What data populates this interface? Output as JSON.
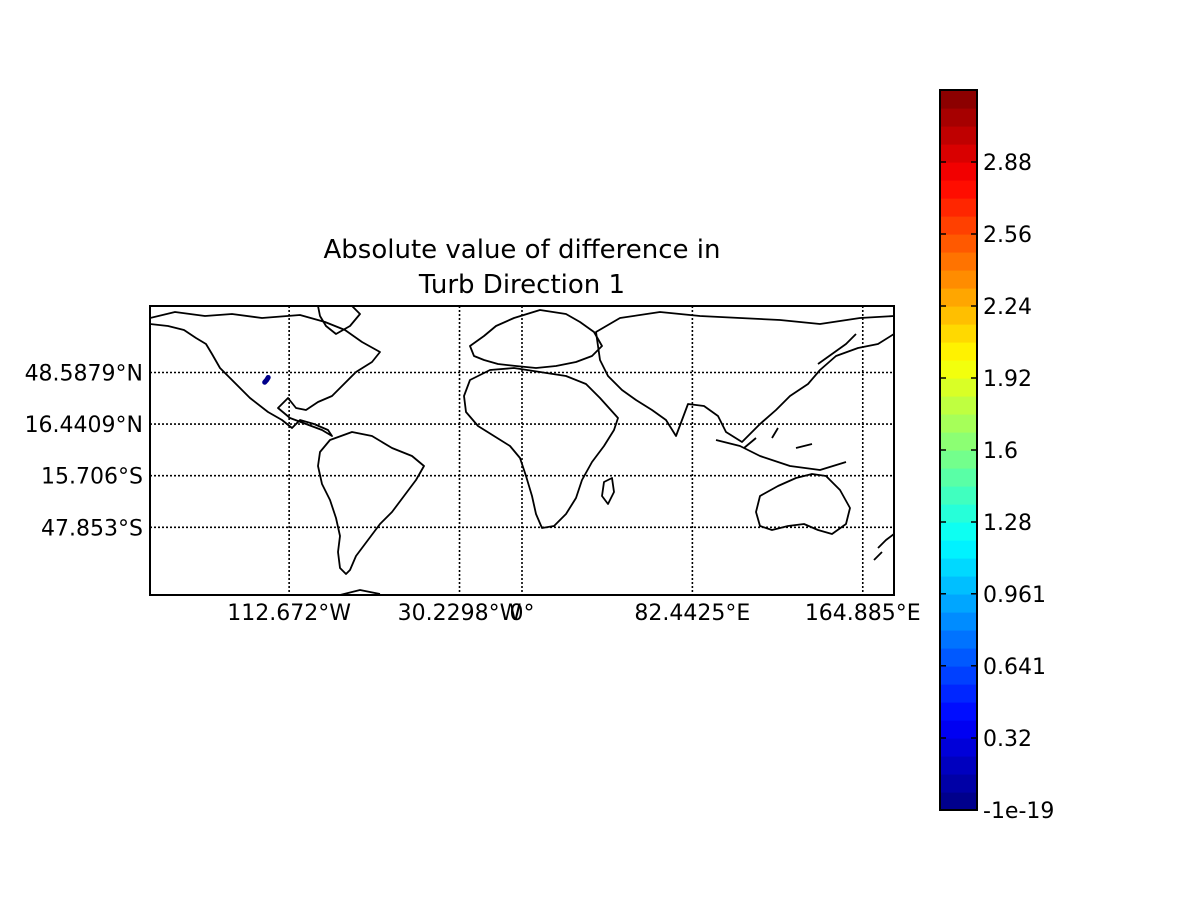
{
  "title": {
    "line1": "Absolute value of difference in",
    "line2": "Turb Direction 1"
  },
  "map": {
    "projection": "cylindrical",
    "lon_range": [
      -180,
      180
    ],
    "lat_range": [
      -90,
      90
    ],
    "grid": "dotted",
    "meridians": [
      {
        "lon": -112.672,
        "label": "112.672°W"
      },
      {
        "lon": -30.2298,
        "label": "30.2298°W"
      },
      {
        "lon": 0,
        "label": "0°"
      },
      {
        "lon": 82.4425,
        "label": "82.4425°E"
      },
      {
        "lon": 164.885,
        "label": "164.885°E"
      }
    ],
    "parallels": [
      {
        "lat": 48.5879,
        "label": "48.5879°N"
      },
      {
        "lat": 16.4409,
        "label": "16.4409°N"
      },
      {
        "lat": -15.706,
        "label": "15.706°S"
      },
      {
        "lat": -47.853,
        "label": "47.853°S"
      }
    ],
    "data_feature": {
      "description_color": "#00008b",
      "points": [
        [
          -124.5,
          42.5
        ],
        [
          -123.5,
          44.0
        ],
        [
          -122.8,
          45.5
        ]
      ]
    }
  },
  "colorbar": {
    "colormap": "jet",
    "range": [
      -1e-19,
      3.2
    ],
    "ticks": [
      {
        "value": -1e-19,
        "label": "-1e-19"
      },
      {
        "value": 0.32,
        "label": "0.32"
      },
      {
        "value": 0.641,
        "label": "0.641"
      },
      {
        "value": 0.961,
        "label": "0.961"
      },
      {
        "value": 1.28,
        "label": "1.28"
      },
      {
        "value": 1.6,
        "label": "1.6"
      },
      {
        "value": 1.92,
        "label": "1.92"
      },
      {
        "value": 2.24,
        "label": "2.24"
      },
      {
        "value": 2.56,
        "label": "2.56"
      },
      {
        "value": 2.88,
        "label": "2.88"
      }
    ],
    "levels": 40
  }
}
